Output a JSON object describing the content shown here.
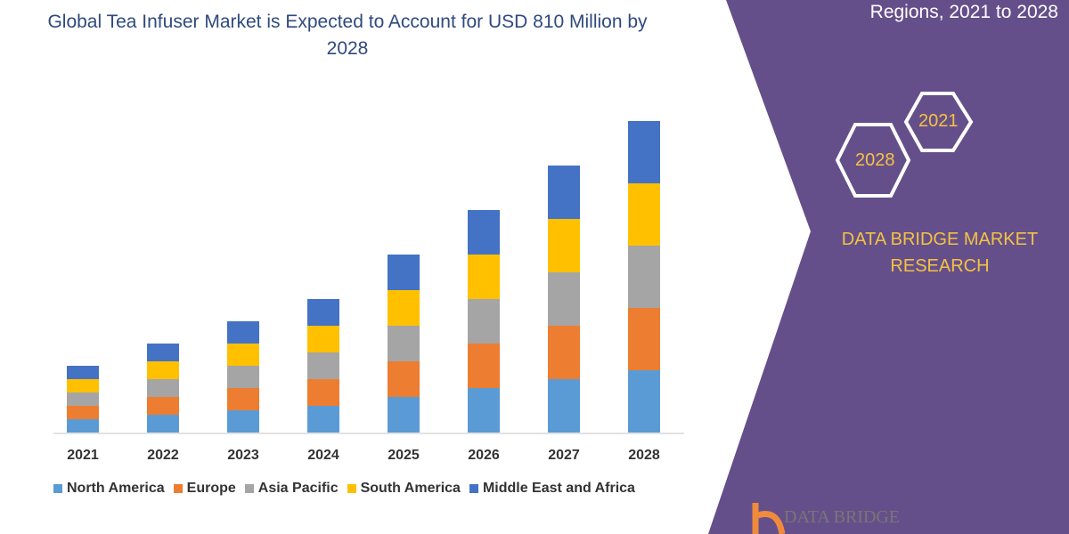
{
  "title": "Global Tea Infuser Market is Expected to Account for USD 810 Million by 2028",
  "side_panel": {
    "heading": "Regions, 2021 to 2028",
    "hex_labels": [
      "2021",
      "2028"
    ],
    "brand": "DATA BRIDGE MARKET RESEARCH",
    "logo_text": "DATA BRIDGE",
    "color": "#654f8a",
    "accent": "#f5c242"
  },
  "chart_data": {
    "type": "bar",
    "stacked": true,
    "title": "Global Tea Infuser Market is Expected to Account for USD 810 Million by 2028",
    "categories": [
      "2021",
      "2022",
      "2023",
      "2024",
      "2025",
      "2026",
      "2027",
      "2028"
    ],
    "series": [
      {
        "name": "North America",
        "color": "#5b9bd5",
        "values": [
          15,
          20,
          25,
          30,
          40,
          50,
          60,
          70
        ]
      },
      {
        "name": "Europe",
        "color": "#ed7d31",
        "values": [
          15,
          20,
          25,
          30,
          40,
          50,
          60,
          70
        ]
      },
      {
        "name": "Asia Pacific",
        "color": "#a5a5a5",
        "values": [
          15,
          20,
          25,
          30,
          40,
          50,
          60,
          70
        ]
      },
      {
        "name": "South America",
        "color": "#ffc000",
        "values": [
          15,
          20,
          25,
          30,
          40,
          50,
          60,
          70
        ]
      },
      {
        "name": "Middle East and Africa",
        "color": "#4472c4",
        "values": [
          15,
          20,
          25,
          30,
          40,
          50,
          60,
          70
        ]
      }
    ],
    "y_axis_shown": false,
    "grid": false,
    "legend": "bottom"
  }
}
